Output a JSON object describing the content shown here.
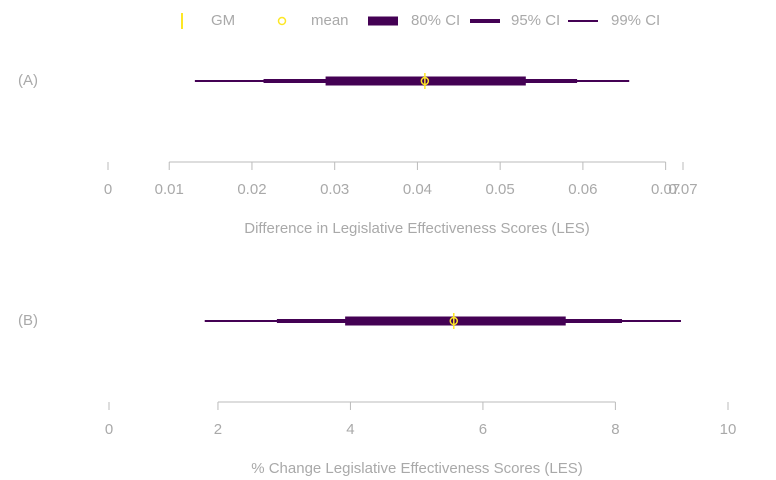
{
  "legend": [
    {
      "name": "GM",
      "color": "#fde725"
    },
    {
      "name": "mean",
      "color": "#fde725"
    },
    {
      "name": "80% CI",
      "color": "#440154"
    },
    {
      "name": "95% CI",
      "color": "#440154"
    },
    {
      "name": "99% CI",
      "color": "#440154"
    }
  ],
  "chart_data": [
    {
      "type": "interval",
      "label": "(A)",
      "x_label": "Difference in Legislative Effectiveness Scores (LES)",
      "gm": 0.0409,
      "mean": 0.0409,
      "intervals": [
        [
          0.0289,
          0.0531
        ],
        [
          0.0214,
          0.0593
        ],
        [
          0.0131,
          0.0656
        ]
      ],
      "xlim": [
        0.0026,
        0.0721
      ],
      "xticks": [
        {
          "value": 0.0026,
          "label": "0"
        },
        0.01,
        0.02,
        0.03,
        0.04,
        0.05,
        0.06,
        0.07,
        {
          "value": 0.0721,
          "label": "0.07"
        }
      ]
    },
    {
      "type": "interval",
      "label": "(B)",
      "x_label": "% Change Legislative Effectiveness Scores (LES)",
      "gm": 5.56,
      "mean": 5.56,
      "intervals": [
        [
          3.92,
          7.25
        ],
        [
          2.89,
          8.1
        ],
        [
          1.8,
          8.99
        ]
      ],
      "xlim": [
        0.355,
        9.7
      ],
      "xticks": [
        {
          "value": 0.355,
          "label": "0"
        },
        2,
        4,
        6,
        8,
        {
          "value": 9.7,
          "label": "10"
        }
      ]
    }
  ]
}
